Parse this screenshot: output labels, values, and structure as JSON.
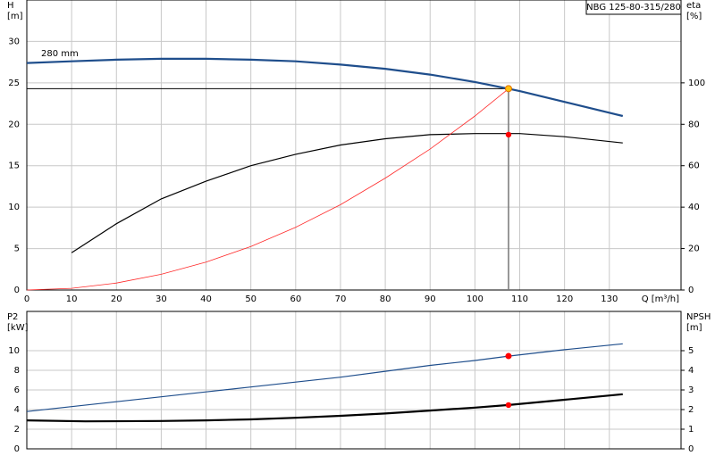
{
  "chart_data": [
    {
      "type": "line",
      "title": "NBG 125-80-315/280",
      "annotation": "280 mm",
      "x_label": "Q [m³/h]",
      "y_label": "H",
      "y_unit": "[m]",
      "y2_label": "eta",
      "y2_unit": "[%]",
      "xlim": [
        0,
        146
      ],
      "xticks": [
        0,
        10,
        20,
        30,
        40,
        50,
        60,
        70,
        80,
        90,
        100,
        110,
        120,
        130
      ],
      "ylim": [
        0,
        35
      ],
      "yticks": [
        0,
        5,
        10,
        15,
        20,
        25,
        30
      ],
      "y2lim": [
        0,
        140
      ],
      "y2ticks": [
        0,
        20,
        40,
        60,
        80,
        100
      ],
      "grid": true,
      "series": [
        {
          "color": "#1f4e8c",
          "style": "thick",
          "x": [
            0,
            10,
            20,
            30,
            40,
            50,
            60,
            70,
            80,
            90,
            100,
            107.5,
            110,
            120,
            133
          ],
          "values": [
            27.4,
            27.6,
            27.8,
            27.9,
            27.9,
            27.8,
            27.6,
            27.2,
            26.7,
            26.0,
            25.1,
            24.3,
            24.0,
            22.7,
            21.0
          ]
        },
        {
          "color": "#000000",
          "style": "normal",
          "axis": "y2",
          "x": [
            10,
            20,
            30,
            40,
            50,
            60,
            70,
            80,
            90,
            100,
            110,
            120,
            133
          ],
          "values": [
            18,
            32,
            44,
            52.5,
            60,
            65.5,
            70,
            73,
            75,
            75.5,
            75.5,
            74,
            71
          ]
        },
        {
          "color": "#ff2a2a",
          "style": "thin",
          "x": [
            0,
            10,
            20,
            30,
            40,
            50,
            60,
            70,
            80,
            90,
            100,
            107.5
          ],
          "values": [
            0,
            0.21,
            0.84,
            1.89,
            3.36,
            5.26,
            7.57,
            10.3,
            13.5,
            17.0,
            21.0,
            24.3
          ]
        }
      ],
      "operating_point": {
        "x": 107.5,
        "y": 24.3,
        "y2": 75,
        "color": "#ffc20e",
        "y2_color": "#ff0000"
      }
    },
    {
      "type": "line",
      "y_label": "P2",
      "y_unit": "[kW]",
      "y2_label": "NPSH",
      "y2_unit": "[m]",
      "xlim": [
        0,
        146
      ],
      "ylim": [
        0,
        14
      ],
      "yticks": [
        0,
        2,
        4,
        6,
        8,
        10
      ],
      "y2lim": [
        0,
        7
      ],
      "y2ticks": [
        0,
        1,
        2,
        3,
        4,
        5
      ],
      "grid": true,
      "series": [
        {
          "color": "#1f4e8c",
          "style": "normal",
          "x": [
            0,
            10,
            20,
            30,
            40,
            50,
            60,
            70,
            80,
            90,
            100,
            107.5,
            120,
            133
          ],
          "values": [
            3.8,
            4.3,
            4.8,
            5.3,
            5.8,
            6.3,
            6.8,
            7.3,
            7.9,
            8.5,
            9.0,
            9.45,
            10.1,
            10.7
          ]
        },
        {
          "color": "#000000",
          "style": "thick",
          "axis": "y2",
          "x": [
            0,
            13,
            30,
            40,
            50,
            60,
            70,
            80,
            90,
            100,
            107.5,
            120,
            133
          ],
          "values": [
            1.45,
            1.4,
            1.42,
            1.45,
            1.5,
            1.58,
            1.68,
            1.8,
            1.95,
            2.1,
            2.23,
            2.5,
            2.78
          ]
        }
      ],
      "operating_point": {
        "x": 107.5,
        "y": 9.45,
        "y2": 2.23,
        "color": "#ff0000",
        "y2_color": "#ff0000"
      }
    }
  ]
}
